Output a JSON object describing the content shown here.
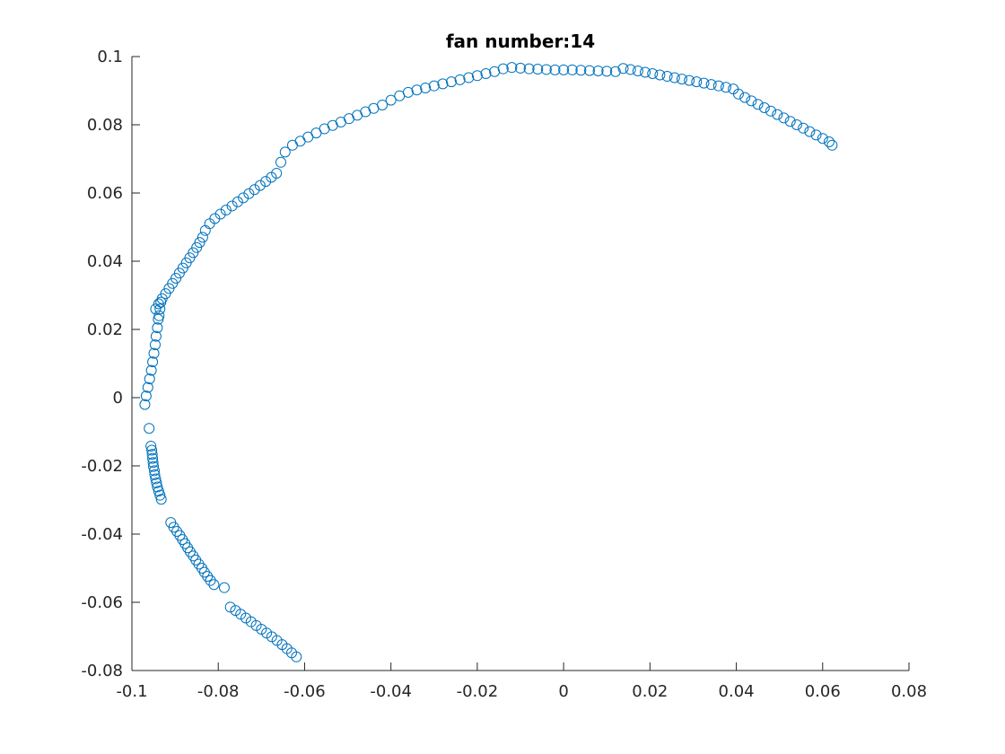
{
  "figure": {
    "background": "#ffffff",
    "axes_color": "#262626",
    "marker_color": "#0072BD"
  },
  "chart_data": {
    "type": "scatter",
    "title": "fan number:14",
    "xlabel": "",
    "ylabel": "",
    "xlim": [
      -0.1,
      0.08
    ],
    "ylim": [
      -0.08,
      0.1
    ],
    "grid": false,
    "legend": "none",
    "marker": "circle-open",
    "xticks": [
      -0.1,
      -0.08,
      -0.06,
      -0.04,
      -0.02,
      0,
      0.02,
      0.04,
      0.06,
      0.08
    ],
    "xtick_labels": [
      "-0.1",
      "-0.08",
      "-0.06",
      "-0.04",
      "-0.02",
      "0",
      "0.02",
      "0.04",
      "0.06",
      "0.08"
    ],
    "yticks": [
      -0.08,
      -0.06,
      -0.04,
      -0.02,
      0,
      0.02,
      0.04,
      0.06,
      0.08,
      0.1
    ],
    "ytick_labels": [
      "-0.08",
      "-0.06",
      "-0.04",
      "-0.02",
      "0",
      "0.02",
      "0.04",
      "0.06",
      "0.08",
      "0.1"
    ],
    "series": [
      {
        "x": [
          -0.0619,
          -0.063,
          -0.0641,
          -0.0652,
          -0.0664,
          -0.0676,
          -0.0688,
          -0.07,
          -0.0712,
          -0.0724,
          -0.0736,
          -0.0748,
          -0.076,
          -0.0772,
          -0.0786,
          -0.081,
          -0.0818,
          -0.0825,
          -0.0832,
          -0.0838,
          -0.0845,
          -0.0852,
          -0.0858,
          -0.0865,
          -0.0871,
          -0.0877,
          -0.0883,
          -0.0889,
          -0.0896,
          -0.0903,
          -0.091,
          -0.0932,
          -0.0935,
          -0.0938,
          -0.0941,
          -0.0943,
          -0.0945,
          -0.0947,
          -0.0948,
          -0.095,
          -0.0951,
          -0.0952,
          -0.0953,
          -0.0954,
          -0.0956,
          -0.096,
          -0.097,
          -0.0967,
          -0.0963,
          -0.0959,
          -0.0955,
          -0.0952,
          -0.0949,
          -0.0946,
          -0.0944,
          -0.0941,
          -0.0939,
          -0.0937,
          -0.0935,
          -0.0933,
          -0.0945,
          -0.0938,
          -0.093,
          -0.0922,
          -0.0914,
          -0.0906,
          -0.0898,
          -0.089,
          -0.0882,
          -0.0874,
          -0.0866,
          -0.0858,
          -0.085,
          -0.0843,
          -0.0836,
          -0.083,
          -0.082,
          -0.0808,
          -0.0795,
          -0.0782,
          -0.0768,
          -0.0755,
          -0.0742,
          -0.0729,
          -0.0716,
          -0.0703,
          -0.069,
          -0.0677,
          -0.0665,
          -0.0655,
          -0.0645,
          -0.0628,
          -0.061,
          -0.0592,
          -0.0573,
          -0.0554,
          -0.0535,
          -0.0516,
          -0.0497,
          -0.0478,
          -0.0459,
          -0.044,
          -0.042,
          -0.04,
          -0.038,
          -0.036,
          -0.034,
          -0.032,
          -0.03,
          -0.028,
          -0.026,
          -0.024,
          -0.022,
          -0.02,
          -0.018,
          -0.016,
          -0.014,
          -0.012,
          -0.01,
          -0.008,
          -0.006,
          -0.004,
          -0.002,
          0.0,
          0.002,
          0.004,
          0.006,
          0.008,
          0.01,
          0.012,
          0.0138,
          0.0155,
          0.0172,
          0.0189,
          0.0206,
          0.0223,
          0.024,
          0.0257,
          0.0274,
          0.0291,
          0.0308,
          0.0325,
          0.0342,
          0.0359,
          0.0376,
          0.0393,
          0.0405,
          0.042,
          0.0435,
          0.045,
          0.0465,
          0.048,
          0.0495,
          0.051,
          0.0525,
          0.054,
          0.0555,
          0.057,
          0.0585,
          0.06,
          0.0615,
          0.0622
        ],
        "y": [
          -0.076,
          -0.0748,
          -0.0736,
          -0.0724,
          -0.0712,
          -0.0701,
          -0.069,
          -0.0679,
          -0.0668,
          -0.0657,
          -0.0646,
          -0.0635,
          -0.0624,
          -0.0614,
          -0.0557,
          -0.0548,
          -0.0536,
          -0.0524,
          -0.0512,
          -0.05,
          -0.0488,
          -0.0476,
          -0.0464,
          -0.0452,
          -0.044,
          -0.0428,
          -0.0416,
          -0.0404,
          -0.0392,
          -0.038,
          -0.0366,
          -0.0298,
          -0.0286,
          -0.0274,
          -0.0262,
          -0.025,
          -0.0238,
          -0.0226,
          -0.0214,
          -0.0202,
          -0.019,
          -0.0178,
          -0.0166,
          -0.0154,
          -0.0142,
          -0.009,
          -0.002,
          0.0005,
          0.003,
          0.0055,
          0.008,
          0.0105,
          0.013,
          0.0155,
          0.018,
          0.0205,
          0.023,
          0.024,
          0.026,
          0.028,
          0.026,
          0.0275,
          0.029,
          0.0305,
          0.032,
          0.0335,
          0.035,
          0.0365,
          0.038,
          0.0395,
          0.041,
          0.0425,
          0.044,
          0.0455,
          0.047,
          0.049,
          0.051,
          0.0525,
          0.0538,
          0.055,
          0.0562,
          0.0574,
          0.0586,
          0.0598,
          0.061,
          0.0622,
          0.0634,
          0.0646,
          0.0658,
          0.069,
          0.072,
          0.074,
          0.0752,
          0.0764,
          0.0776,
          0.0788,
          0.0798,
          0.0808,
          0.0818,
          0.0828,
          0.0838,
          0.0848,
          0.0858,
          0.0872,
          0.0885,
          0.0895,
          0.0902,
          0.0908,
          0.0914,
          0.092,
          0.0926,
          0.0932,
          0.0938,
          0.0944,
          0.095,
          0.0956,
          0.0964,
          0.0968,
          0.0966,
          0.0964,
          0.0963,
          0.0962,
          0.0961,
          0.0961,
          0.0961,
          0.096,
          0.0959,
          0.0958,
          0.0957,
          0.0956,
          0.0965,
          0.0962,
          0.0958,
          0.0954,
          0.095,
          0.0946,
          0.0942,
          0.0938,
          0.0934,
          0.093,
          0.0926,
          0.0922,
          0.0918,
          0.0914,
          0.091,
          0.0905,
          0.089,
          0.088,
          0.087,
          0.086,
          0.085,
          0.084,
          0.083,
          0.082,
          0.081,
          0.08,
          0.079,
          0.078,
          0.077,
          0.076,
          0.075,
          0.074
        ]
      }
    ]
  }
}
